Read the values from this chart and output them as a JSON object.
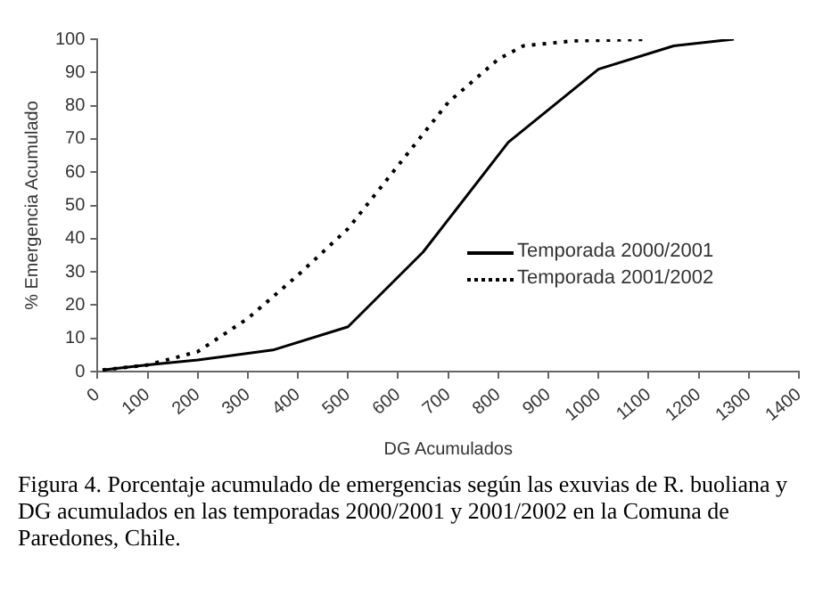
{
  "chart_data": {
    "type": "line",
    "xlabel": "DG Acumulados",
    "ylabel": "% Emergencia Acumulado",
    "xlim": [
      0,
      1400
    ],
    "xticks": [
      0,
      100,
      200,
      300,
      400,
      500,
      600,
      700,
      800,
      900,
      1000,
      1100,
      1200,
      1300,
      1400
    ],
    "ylim": [
      0,
      100
    ],
    "yticks": [
      0,
      10,
      20,
      30,
      40,
      50,
      60,
      70,
      80,
      90,
      100
    ],
    "grid": false,
    "legend": "right",
    "marker": "none",
    "series": [
      {
        "name": "Temporada 2000/2001",
        "color": "#000000",
        "line_style": "solid",
        "x": [
          10,
          100,
          200,
          350,
          500,
          650,
          820,
          1000,
          1150,
          1270
        ],
        "values": [
          0.5,
          2,
          3.5,
          6.5,
          13.5,
          36,
          69,
          91,
          98,
          100
        ]
      },
      {
        "name": "Temporada 2001/2002",
        "color": "#000000",
        "line_style": "dotted",
        "x": [
          10,
          100,
          200,
          300,
          400,
          500,
          600,
          700,
          800,
          850,
          950,
          1100
        ],
        "values": [
          0.5,
          2,
          6,
          16,
          29,
          43,
          62,
          81,
          94,
          98,
          99.5,
          100
        ]
      }
    ],
    "annotations": [
      "Figura 4. Porcentaje acumulado de emergencias según las exuvias de R. buoliana y DG acumulados en las temporadas 2000/2001 y 2001/2002 en la Comuna de Paredones, Chile."
    ]
  }
}
